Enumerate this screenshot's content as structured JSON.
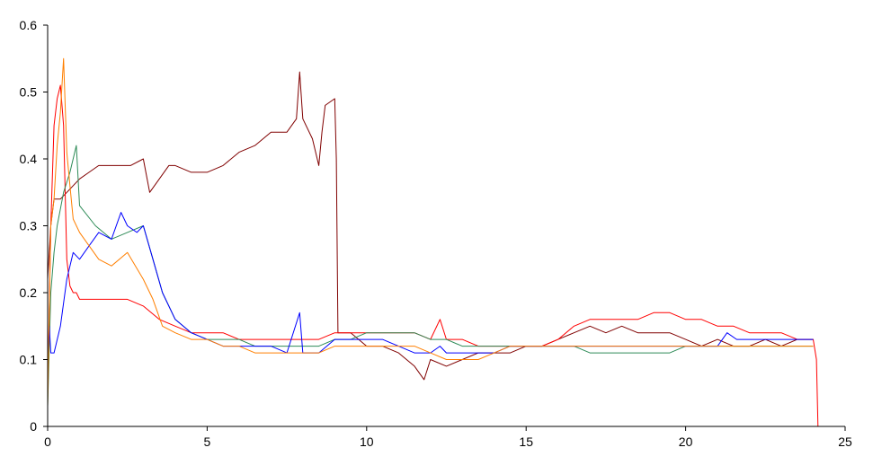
{
  "chart_data": {
    "type": "line",
    "title": "",
    "xlabel": "",
    "ylabel": "",
    "xlim": [
      0,
      25
    ],
    "ylim": [
      0,
      0.6
    ],
    "x_ticks": [
      0,
      5,
      10,
      15,
      20,
      25
    ],
    "x_tick_labels": [
      "0",
      "5",
      "10",
      "15",
      "20",
      "25"
    ],
    "y_ticks": [
      0,
      0.1,
      0.2,
      0.3,
      0.4,
      0.5,
      0.6
    ],
    "y_tick_labels": [
      "0",
      "0.1",
      "0.2",
      "0.3",
      "0.4",
      "0.5",
      "0.6"
    ],
    "grid": false,
    "legend": "none",
    "series": [
      {
        "color": "#800000",
        "x": [
          0,
          0.1,
          0.2,
          0.4,
          0.6,
          0.8,
          1.0,
          1.3,
          1.6,
          2.0,
          2.3,
          2.6,
          3.0,
          3.2,
          3.5,
          3.8,
          4.0,
          4.5,
          5.0,
          5.5,
          6.0,
          6.5,
          7.0,
          7.5,
          7.8,
          7.9,
          8.0,
          8.3,
          8.5,
          8.6,
          8.7,
          9.0,
          9.05,
          9.1,
          9.2,
          9.5,
          10.0,
          10.5,
          11.0,
          11.5,
          11.8,
          12.0,
          12.5,
          13.0,
          13.5,
          14.0,
          14.5,
          15.0,
          15.5,
          16.0,
          16.5,
          17.0,
          17.5,
          18.0,
          18.5,
          19.0,
          19.5,
          20.0,
          20.5,
          21.0,
          21.5,
          22.0,
          22.5,
          23.0,
          23.5,
          24.0
        ],
        "y": [
          0.22,
          0.3,
          0.34,
          0.34,
          0.35,
          0.36,
          0.37,
          0.38,
          0.39,
          0.39,
          0.39,
          0.39,
          0.4,
          0.35,
          0.37,
          0.39,
          0.39,
          0.38,
          0.38,
          0.39,
          0.41,
          0.42,
          0.44,
          0.44,
          0.46,
          0.53,
          0.46,
          0.43,
          0.39,
          0.44,
          0.48,
          0.49,
          0.4,
          0.14,
          0.14,
          0.14,
          0.12,
          0.12,
          0.11,
          0.09,
          0.07,
          0.1,
          0.09,
          0.1,
          0.11,
          0.11,
          0.11,
          0.12,
          0.12,
          0.13,
          0.14,
          0.15,
          0.14,
          0.15,
          0.14,
          0.14,
          0.14,
          0.13,
          0.12,
          0.13,
          0.12,
          0.12,
          0.13,
          0.12,
          0.13,
          0.13
        ]
      },
      {
        "color": "#ff0000",
        "x": [
          0,
          0.1,
          0.2,
          0.3,
          0.4,
          0.5,
          0.6,
          0.7,
          0.8,
          0.9,
          1.0,
          1.5,
          2.0,
          2.5,
          3.0,
          3.5,
          4.0,
          4.5,
          5.0,
          5.5,
          6.0,
          6.5,
          7.0,
          7.5,
          8.0,
          8.5,
          9.0,
          9.5,
          10.0,
          10.5,
          11.0,
          11.5,
          12.0,
          12.3,
          12.5,
          13.0,
          13.5,
          14.0,
          14.5,
          15.0,
          15.5,
          16.0,
          16.5,
          17.0,
          17.5,
          18.0,
          18.5,
          19.0,
          19.5,
          20.0,
          20.5,
          21.0,
          21.5,
          22.0,
          22.5,
          23.0,
          23.5,
          24.0,
          24.1,
          24.15
        ],
        "y": [
          0.05,
          0.3,
          0.45,
          0.49,
          0.51,
          0.45,
          0.25,
          0.21,
          0.2,
          0.2,
          0.19,
          0.19,
          0.19,
          0.19,
          0.18,
          0.16,
          0.15,
          0.14,
          0.14,
          0.14,
          0.13,
          0.13,
          0.13,
          0.13,
          0.13,
          0.13,
          0.14,
          0.14,
          0.14,
          0.14,
          0.14,
          0.14,
          0.13,
          0.16,
          0.13,
          0.13,
          0.12,
          0.12,
          0.12,
          0.12,
          0.12,
          0.13,
          0.15,
          0.16,
          0.16,
          0.16,
          0.16,
          0.17,
          0.17,
          0.16,
          0.16,
          0.15,
          0.15,
          0.14,
          0.14,
          0.14,
          0.13,
          0.13,
          0.1,
          0.0
        ]
      },
      {
        "color": "#2e8b57",
        "x": [
          0,
          0.1,
          0.2,
          0.3,
          0.5,
          0.7,
          0.9,
          1.0,
          1.5,
          2.0,
          2.5,
          3.0,
          3.3,
          3.6,
          4.0,
          4.5,
          5.0,
          5.5,
          6.0,
          6.5,
          7.0,
          7.5,
          8.0,
          8.5,
          9.0,
          9.5,
          10.0,
          10.5,
          11.0,
          11.5,
          12.0,
          12.5,
          13.0,
          13.5,
          14.0,
          14.5,
          15.0,
          15.5,
          16.0,
          16.5,
          17.0,
          17.5,
          18.0,
          18.5,
          19.0,
          19.5,
          20.0,
          20.5,
          21.0,
          21.5,
          22.0,
          22.5,
          23.0,
          23.5,
          24.0
        ],
        "y": [
          0.03,
          0.2,
          0.26,
          0.3,
          0.35,
          0.38,
          0.42,
          0.33,
          0.3,
          0.28,
          0.29,
          0.3,
          0.25,
          0.2,
          0.16,
          0.14,
          0.13,
          0.13,
          0.13,
          0.12,
          0.12,
          0.12,
          0.12,
          0.12,
          0.13,
          0.13,
          0.14,
          0.14,
          0.14,
          0.14,
          0.13,
          0.13,
          0.12,
          0.12,
          0.12,
          0.12,
          0.12,
          0.12,
          0.12,
          0.12,
          0.11,
          0.11,
          0.11,
          0.11,
          0.11,
          0.11,
          0.12,
          0.12,
          0.12,
          0.12,
          0.12,
          0.12,
          0.12,
          0.12,
          0.12
        ]
      },
      {
        "color": "#0000ff",
        "x": [
          0,
          0.05,
          0.1,
          0.2,
          0.4,
          0.6,
          0.8,
          1.0,
          1.3,
          1.6,
          2.0,
          2.3,
          2.5,
          2.8,
          3.0,
          3.3,
          3.6,
          4.0,
          4.5,
          5.0,
          5.5,
          6.0,
          6.5,
          7.0,
          7.5,
          7.9,
          8.0,
          8.5,
          9.0,
          9.5,
          10.0,
          10.5,
          11.0,
          11.5,
          12.0,
          12.3,
          12.5,
          13.0,
          13.5,
          14.0,
          14.5,
          15.0,
          15.5,
          16.0,
          16.5,
          17.0,
          17.5,
          18.0,
          18.5,
          19.0,
          19.5,
          20.0,
          20.5,
          21.0,
          21.3,
          21.6,
          22.0,
          22.5,
          23.0,
          23.5,
          24.0
        ],
        "y": [
          0.08,
          0.15,
          0.11,
          0.11,
          0.15,
          0.22,
          0.26,
          0.25,
          0.27,
          0.29,
          0.28,
          0.32,
          0.3,
          0.29,
          0.3,
          0.25,
          0.2,
          0.16,
          0.14,
          0.13,
          0.12,
          0.12,
          0.12,
          0.12,
          0.11,
          0.17,
          0.11,
          0.11,
          0.13,
          0.13,
          0.13,
          0.13,
          0.12,
          0.11,
          0.11,
          0.12,
          0.11,
          0.11,
          0.11,
          0.11,
          0.12,
          0.12,
          0.12,
          0.12,
          0.12,
          0.12,
          0.12,
          0.12,
          0.12,
          0.12,
          0.12,
          0.12,
          0.12,
          0.12,
          0.14,
          0.13,
          0.13,
          0.13,
          0.13,
          0.13,
          0.13
        ]
      },
      {
        "color": "#ff7f00",
        "x": [
          0,
          0.1,
          0.2,
          0.3,
          0.4,
          0.5,
          0.6,
          0.7,
          0.8,
          1.0,
          1.3,
          1.6,
          2.0,
          2.5,
          3.0,
          3.3,
          3.6,
          4.0,
          4.5,
          5.0,
          5.5,
          6.0,
          6.5,
          7.0,
          7.5,
          8.0,
          8.5,
          9.0,
          9.5,
          10.0,
          10.5,
          11.0,
          11.5,
          12.0,
          12.5,
          13.0,
          13.5,
          14.0,
          14.5,
          15.0,
          15.5,
          16.0,
          16.5,
          17.0,
          17.5,
          18.0,
          18.5,
          19.0,
          19.5,
          20.0,
          20.5,
          21.0,
          21.5,
          22.0,
          22.5,
          23.0,
          23.5,
          24.0
        ],
        "y": [
          0.03,
          0.3,
          0.34,
          0.42,
          0.47,
          0.55,
          0.41,
          0.36,
          0.31,
          0.29,
          0.27,
          0.25,
          0.24,
          0.26,
          0.22,
          0.19,
          0.15,
          0.14,
          0.13,
          0.13,
          0.12,
          0.12,
          0.11,
          0.11,
          0.11,
          0.11,
          0.11,
          0.12,
          0.12,
          0.12,
          0.12,
          0.12,
          0.12,
          0.11,
          0.1,
          0.1,
          0.1,
          0.11,
          0.12,
          0.12,
          0.12,
          0.12,
          0.12,
          0.12,
          0.12,
          0.12,
          0.12,
          0.12,
          0.12,
          0.12,
          0.12,
          0.12,
          0.12,
          0.12,
          0.12,
          0.12,
          0.12,
          0.12
        ]
      }
    ]
  }
}
